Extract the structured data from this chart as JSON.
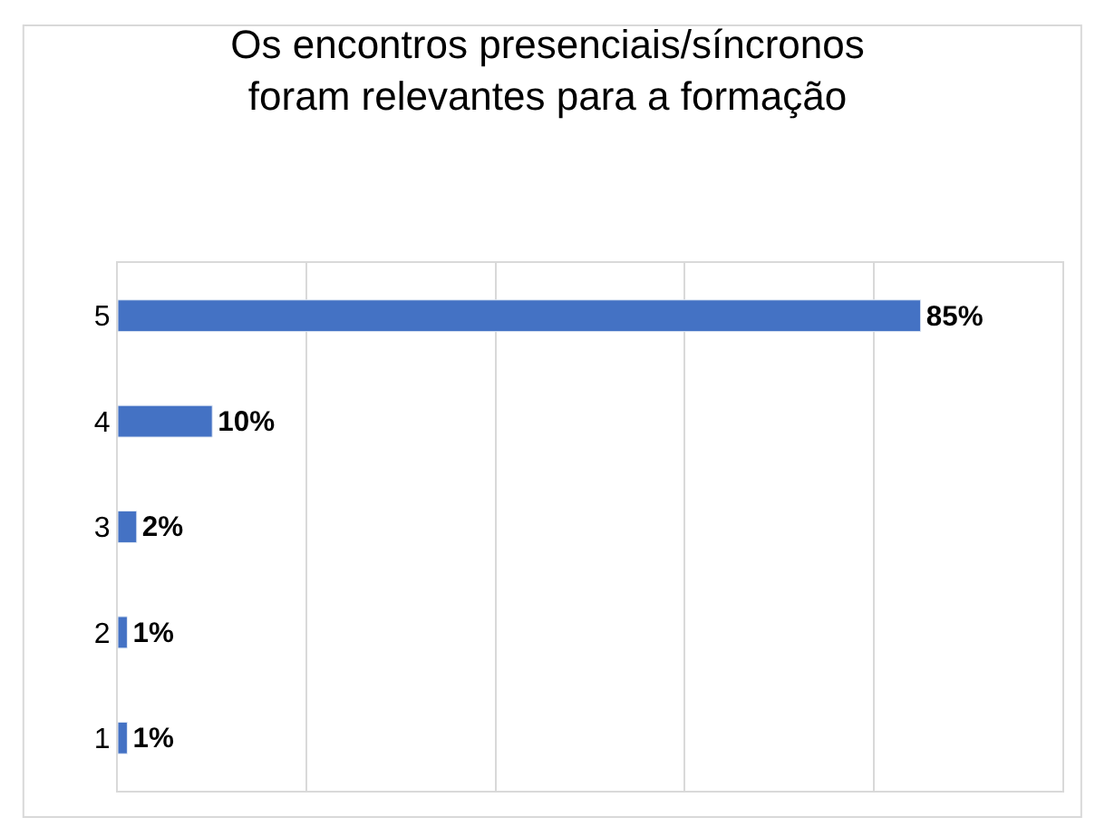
{
  "chart_data": {
    "type": "bar",
    "orientation": "horizontal",
    "title": "Os encontros presenciais/síncronos\nforam relevantes para a formação",
    "categories": [
      "5",
      "4",
      "3",
      "2",
      "1"
    ],
    "values": [
      85,
      10,
      2,
      1,
      1
    ],
    "value_labels": [
      "85%",
      "10%",
      "2%",
      "1%",
      "1%"
    ],
    "color": "#4472c4",
    "xlim": [
      0,
      100
    ],
    "xticks": [
      {
        "value": 0,
        "label": null
      },
      {
        "value": 20,
        "label": null
      },
      {
        "value": 40,
        "label": null
      },
      {
        "value": 60,
        "label": null
      },
      {
        "value": 80,
        "label": null
      },
      {
        "value": 100,
        "label": null
      }
    ],
    "tick_labels": "y",
    "grid": "x",
    "legend": false
  }
}
